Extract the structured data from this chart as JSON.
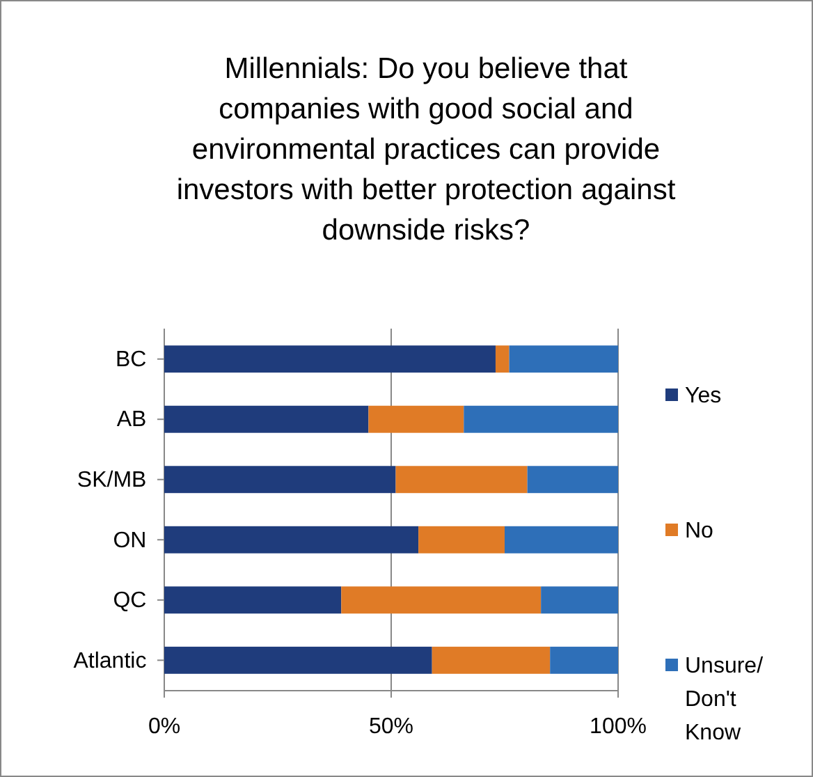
{
  "chart_data": {
    "type": "bar",
    "orientation": "horizontal",
    "stacked": true,
    "title": "Millennials: Do you believe that companies with good social and environmental practices can provide investors with better protection against downside risks?",
    "categories": [
      "BC",
      "AB",
      "SK/MB",
      "ON",
      "QC",
      "Atlantic"
    ],
    "series": [
      {
        "name": "Yes",
        "color": "#1f3c7c",
        "values": [
          73,
          45,
          51,
          56,
          39,
          59
        ]
      },
      {
        "name": "No",
        "color": "#e07b26",
        "values": [
          3,
          21,
          29,
          19,
          44,
          26
        ]
      },
      {
        "name": "Unsure/ Don't Know",
        "color": "#2e6fb8",
        "values": [
          24,
          34,
          20,
          25,
          17,
          15
        ]
      }
    ],
    "xlim": [
      0,
      100
    ],
    "xticks": [
      {
        "value": 0,
        "label": "0%"
      },
      {
        "value": 50,
        "label": "50%"
      },
      {
        "value": 100,
        "label": "100%"
      }
    ],
    "grid": "x",
    "legend": "right"
  }
}
